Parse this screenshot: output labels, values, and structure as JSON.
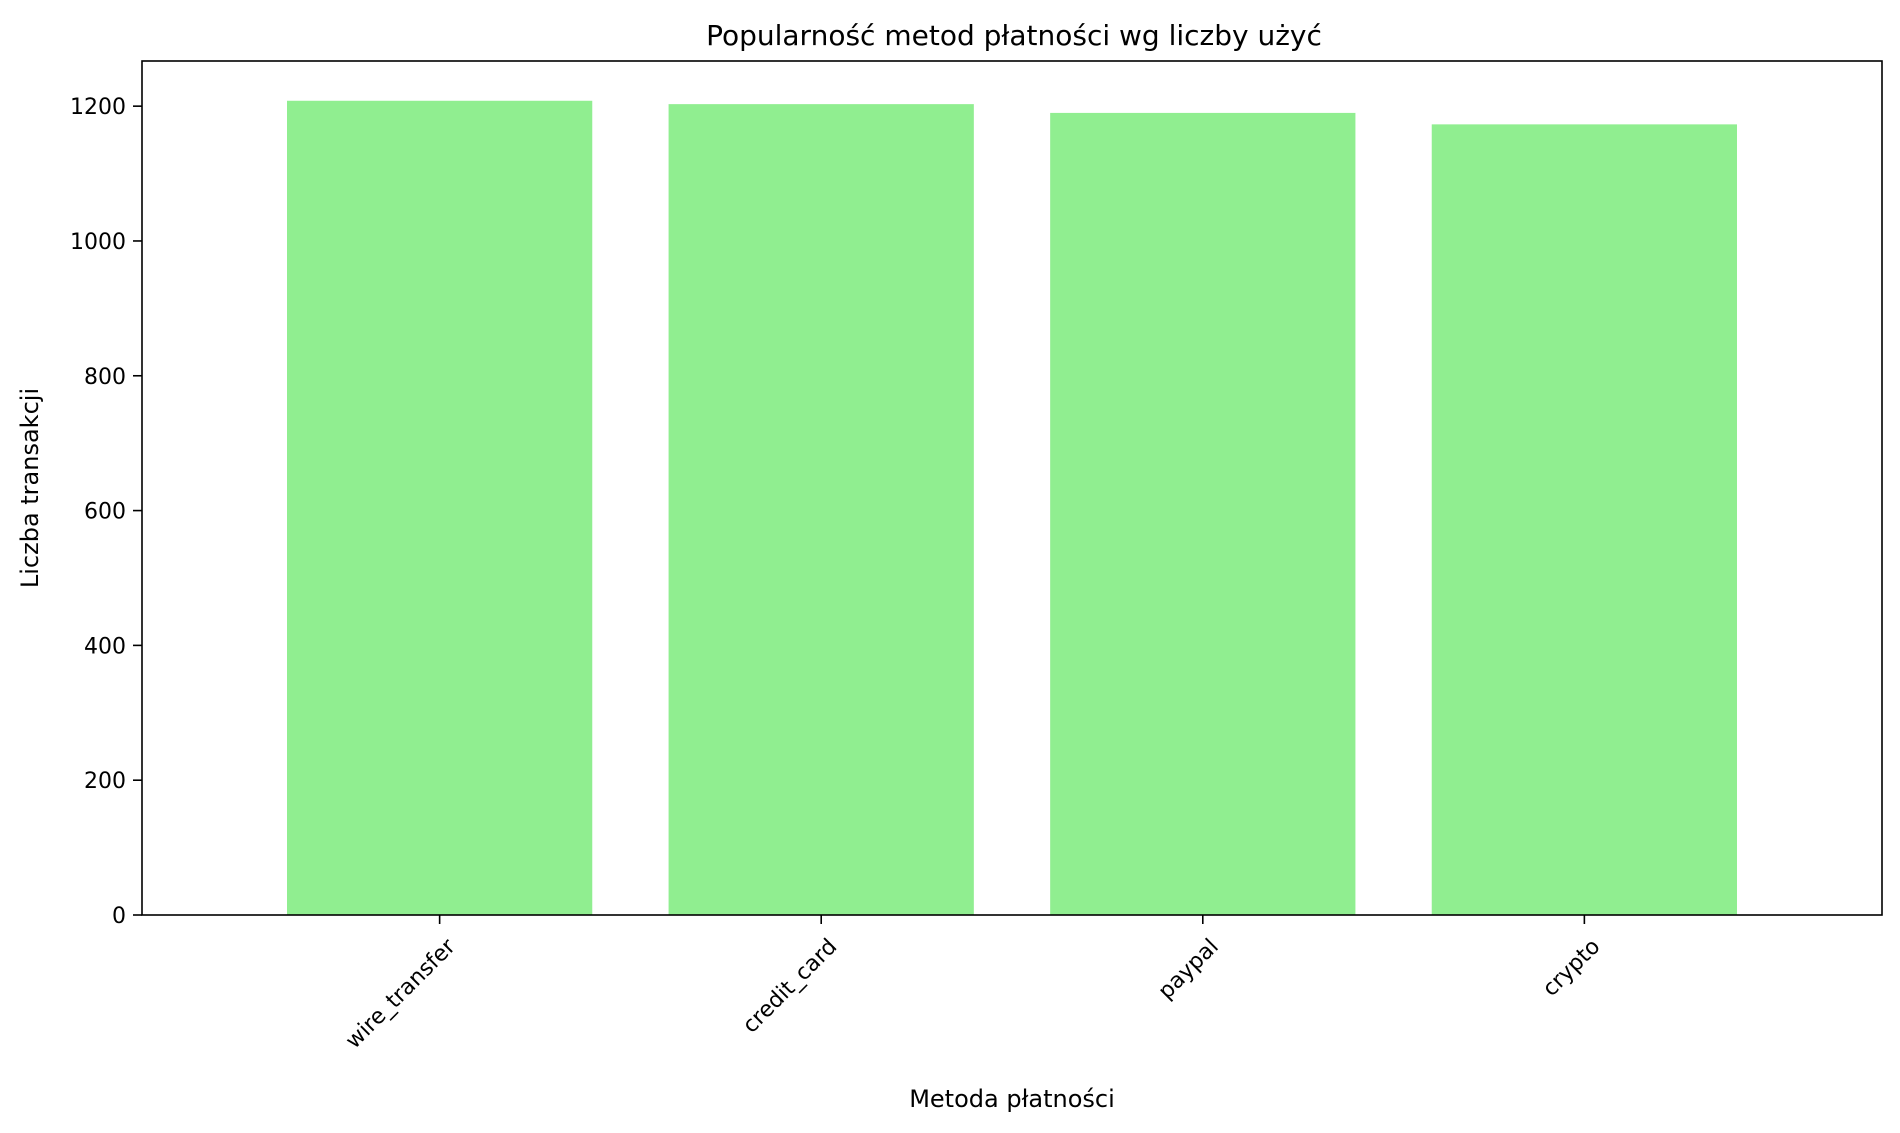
{
  "chart_data": {
    "type": "bar",
    "title": "Popularność metod płatności wg liczby użyć",
    "xlabel": "Metoda płatności",
    "ylabel": "Liczba transakcji",
    "categories": [
      "wire_transfer",
      "credit_card",
      "paypal",
      "crypto"
    ],
    "values": [
      1208,
      1203,
      1190,
      1173
    ],
    "ylim": [
      0,
      1267
    ],
    "yticks": [
      0,
      200,
      400,
      600,
      800,
      1000,
      1200
    ],
    "grid": false,
    "legend": "none",
    "bar_color": "#90EE90",
    "x_tick_rotation": -45
  }
}
